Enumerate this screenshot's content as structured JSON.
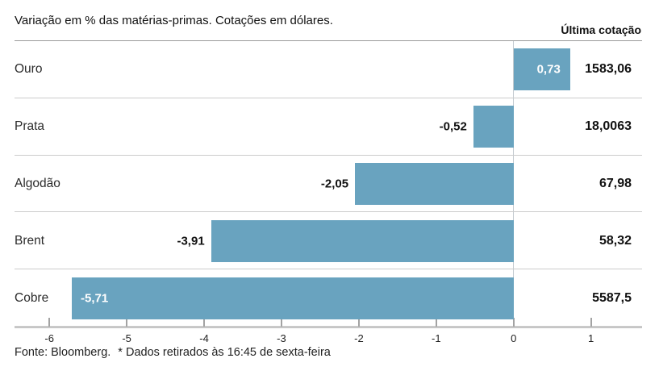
{
  "header": {
    "title": "Variação em % das matérias-primas. Cotações em dólares.",
    "last_quote_label": "Última cotação"
  },
  "chart_data": {
    "type": "bar",
    "orientation": "horizontal",
    "title": "Variação em % das matérias-primas. Cotações em dólares.",
    "categories": [
      "Ouro",
      "Prata",
      "Algodão",
      "Brent",
      "Cobre"
    ],
    "values": [
      0.73,
      -0.52,
      -2.05,
      -3.91,
      -5.71
    ],
    "value_labels": [
      "0,73",
      "-0,52",
      "-2,05",
      "-3,91",
      "-5,71"
    ],
    "label_placement": [
      "inside-end",
      "outside",
      "outside",
      "outside",
      "inside-start"
    ],
    "last_quotes": [
      "1583,06",
      "18,0063",
      "67,98",
      "58,32",
      "5587,5"
    ],
    "xlabel": "",
    "ylabel": "",
    "xlim": [
      -6.45,
      1.66
    ],
    "xticks": [
      -6,
      -5,
      -4,
      -3,
      -2,
      -1,
      0,
      1
    ],
    "xtick_labels": [
      "-6",
      "-5",
      "-4",
      "-3",
      "-2",
      "-1",
      "0",
      "1"
    ],
    "bar_color": "#69a3bf",
    "grid": false,
    "legend": false,
    "zero_line": true
  },
  "footer": {
    "source": "Fonte: Bloomberg.",
    "note": "* Dados retirados às 16:45 de sexta-feira"
  }
}
